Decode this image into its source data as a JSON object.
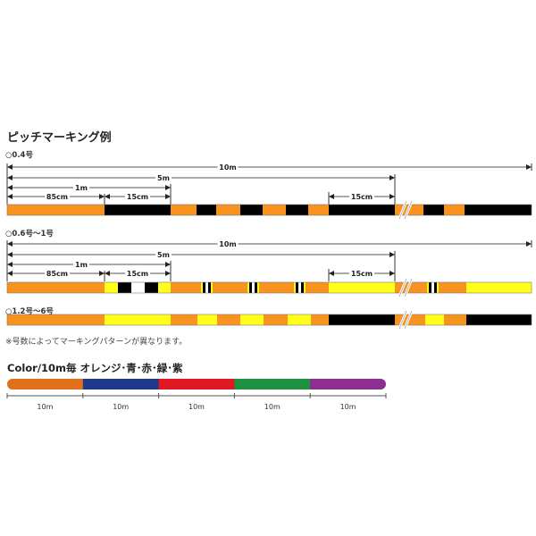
{
  "title": "ピッチマーキング例",
  "sections": [
    {
      "label": "○0.4号",
      "dims": {
        "total": "10m",
        "half": "5m",
        "one": "1m",
        "a": "85cm",
        "b": "15cm",
        "c": "15cm"
      }
    },
    {
      "label": "○0.6号〜1号",
      "dims": {
        "total": "10m",
        "half": "5m",
        "one": "1m",
        "a": "85cm",
        "b": "15cm",
        "c": "15cm"
      }
    },
    {
      "label": "○1.2号〜6号"
    }
  ],
  "note": "※号数によってマーキングパターンが異なります。",
  "color_section": {
    "title": "Color/10m毎 オレンジ･青･赤･緑･紫",
    "segments": [
      {
        "color": "#e0701a",
        "length": "10m"
      },
      {
        "color": "#1e3a8a",
        "length": "10m"
      },
      {
        "color": "#e01822",
        "length": "10m"
      },
      {
        "color": "#1e9040",
        "length": "10m"
      },
      {
        "color": "#8e2e90",
        "length": "10m"
      }
    ]
  },
  "colors": {
    "orange": "#f7931e",
    "black": "#000000",
    "yellow": "#ffff1a",
    "white": "#ffffff"
  }
}
